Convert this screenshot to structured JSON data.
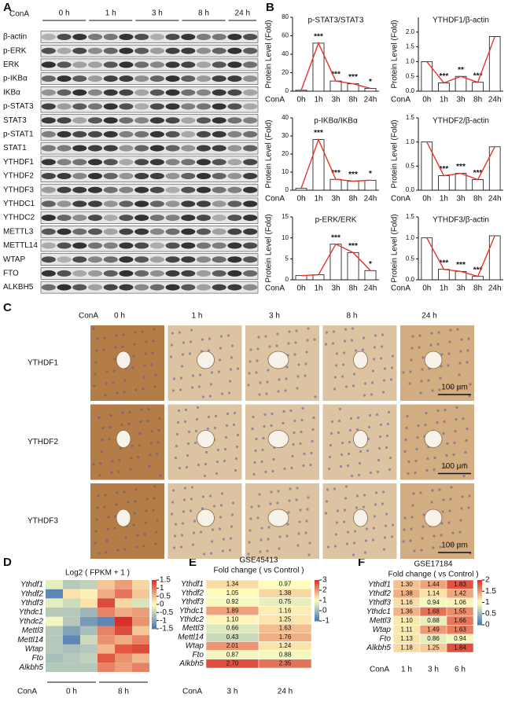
{
  "panel_labels": [
    "A",
    "B",
    "C",
    "D",
    "E",
    "F"
  ],
  "blot": {
    "treatment_label": "ConA",
    "timepoints": [
      "0 h",
      "1 h",
      "3 h",
      "8 h",
      "24 h"
    ],
    "proteins": [
      "β-actin",
      "p-ERK",
      "ERK",
      "p-IKBα",
      "IKBα",
      "p-STAT3",
      "STAT3",
      "p-STAT1",
      "STAT1",
      "YTHDF1",
      "YTHDF2",
      "YTHDF3",
      "YTHDC1",
      "YTHDC2",
      "METTL3",
      "METTL14",
      "WTAP",
      "FTO",
      "ALKBH5"
    ]
  },
  "chart_data": [
    {
      "type": "bar",
      "title": "p-STAT3/STAT3",
      "y_label": "Protein Level (Fold)",
      "x_label": "ConA",
      "categories": [
        "0h",
        "1h",
        "3h",
        "8h",
        "24h"
      ],
      "values": [
        1,
        52,
        11,
        8,
        3
      ],
      "annotations": [
        null,
        "***",
        "***",
        "***",
        "*"
      ],
      "ylim": [
        0,
        80
      ],
      "yticks": [
        0,
        20,
        40,
        60,
        80
      ],
      "color": "#ffffff",
      "line_color": "#e8342a"
    },
    {
      "type": "bar",
      "title": "YTHDF1/β-actin",
      "y_label": "Protein Level (Fold)",
      "x_label": "ConA",
      "categories": [
        "0h",
        "1h",
        "3h",
        "8h",
        "24h"
      ],
      "values": [
        1.0,
        0.28,
        0.5,
        0.3,
        1.85
      ],
      "annotations": [
        null,
        "***",
        "**",
        "***",
        null
      ],
      "ylim": [
        0,
        2.5
      ],
      "yticks": [
        {
          "value": 0,
          "label": "0.0"
        },
        0.5,
        {
          "value": 1,
          "label": "1.0"
        },
        1.5,
        {
          "value": 2,
          "label": "2.0"
        }
      ],
      "color": "#ffffff",
      "line_color": "#e8342a"
    },
    {
      "type": "bar",
      "title": "p-IKBα/IKBα",
      "y_label": "Protein Level (Fold)",
      "x_label": "ConA",
      "categories": [
        "0h",
        "1h",
        "3h",
        "8h",
        "24h"
      ],
      "values": [
        1,
        28,
        6,
        5,
        5.5
      ],
      "annotations": [
        null,
        "***",
        "***",
        "***",
        "*"
      ],
      "ylim": [
        0,
        40
      ],
      "yticks": [
        0,
        10,
        20,
        30,
        40
      ],
      "color": "#ffffff",
      "line_color": "#e8342a"
    },
    {
      "type": "bar",
      "title": "YTHDF2/β-actin",
      "y_label": "Protein Level (Fold)",
      "x_label": "ConA",
      "categories": [
        "0h",
        "1h",
        "3h",
        "8h",
        "24h"
      ],
      "values": [
        1.0,
        0.3,
        0.35,
        0.22,
        0.9
      ],
      "annotations": [
        null,
        "***",
        "***",
        "***",
        null
      ],
      "ylim": [
        0,
        1.5
      ],
      "yticks": [
        {
          "value": 0,
          "label": "0.0"
        },
        0.5,
        {
          "value": 1,
          "label": "1.0"
        },
        1.5
      ],
      "color": "#ffffff",
      "line_color": "#e8342a"
    },
    {
      "type": "bar",
      "title": "p-ERK/ERK",
      "y_label": "Protein Level (Fold)",
      "x_label": "ConA",
      "categories": [
        "0h",
        "1h",
        "3h",
        "8h",
        "24h"
      ],
      "values": [
        1,
        1.2,
        8.5,
        6.5,
        2.2
      ],
      "annotations": [
        null,
        null,
        "***",
        "***",
        "*"
      ],
      "ylim": [
        0,
        15
      ],
      "yticks": [
        0,
        5,
        10,
        15
      ],
      "color": "#ffffff",
      "line_color": "#e8342a"
    },
    {
      "type": "bar",
      "title": "YTHDF3/β-actin",
      "y_label": "Protein Level (Fold)",
      "x_label": "ConA",
      "categories": [
        "0h",
        "1h",
        "3h",
        "8h",
        "24h"
      ],
      "values": [
        1.0,
        0.25,
        0.2,
        0.08,
        1.05
      ],
      "annotations": [
        null,
        "***",
        "***",
        "***",
        null
      ],
      "ylim": [
        0,
        1.5
      ],
      "yticks": [
        {
          "value": 0,
          "label": "0.0"
        },
        0.5,
        {
          "value": 1,
          "label": "1.0"
        },
        1.5
      ],
      "color": "#ffffff",
      "line_color": "#e8342a"
    }
  ],
  "ihc": {
    "treatment_label": "ConA",
    "timepoints": [
      "0 h",
      "1 h",
      "3 h",
      "8 h",
      "24 h"
    ],
    "stains": [
      "YTHDF1",
      "YTHDF2",
      "YTHDF3"
    ],
    "scale_bar": "100 μm"
  },
  "heatmap": {
    "title": "Log2 ( FPKM + 1 )",
    "genes": [
      "Ythdf1",
      "Ythdf2",
      "Ythdf3",
      "Ythdc1",
      "Ythdc2",
      "Mettl3",
      "Mettl14",
      "Wtap",
      "Fto",
      "Alkbh5"
    ],
    "values": [
      [
        -0.2,
        -0.6,
        -0.5,
        0.4,
        0.7,
        0.3
      ],
      [
        -1.3,
        0.2,
        0.1,
        0.6,
        1.0,
        0.4
      ],
      [
        -0.2,
        -0.4,
        0.2,
        1.3,
        0.3,
        -0.3
      ],
      [
        -0.6,
        -0.6,
        -0.8,
        0.9,
        0.6,
        0.7
      ],
      [
        -0.1,
        -0.6,
        -1.1,
        -1.3,
        1.6,
        0.8
      ],
      [
        -0.6,
        -1.0,
        -0.7,
        0.9,
        1.3,
        0.4
      ],
      [
        -0.6,
        -1.3,
        -0.4,
        0.8,
        0.6,
        0.9
      ],
      [
        -0.6,
        -0.7,
        -0.6,
        0.5,
        1.2,
        1.3
      ],
      [
        -0.7,
        -0.6,
        -0.5,
        1.2,
        0.8,
        0.5
      ],
      [
        -0.6,
        -0.6,
        -0.6,
        0.9,
        0.7,
        0.9
      ]
    ],
    "colorbar_lim": [
      -1.5,
      1.5
    ],
    "colorbar_ticks": [
      1.5,
      1,
      0.5,
      0,
      -0.5,
      -1,
      -1.5
    ],
    "treatment_label": "ConA",
    "groups": [
      "0 h",
      "8 h"
    ]
  },
  "table_e": {
    "title": "GSE45413",
    "subtitle": "Fold change ( vs Control )",
    "genes": [
      "Ythdf1",
      "Ythdf2",
      "Ythdf3",
      "Ythdc1",
      "Ythdc2",
      "Mettl3",
      "Mettl14",
      "Wtap",
      "Fto",
      "Alkbh5"
    ],
    "columns": [
      "3 h",
      "24 h"
    ],
    "values": [
      [
        "1.34",
        "0.97"
      ],
      [
        "1.05",
        "1.38"
      ],
      [
        "0.92",
        "0.75"
      ],
      [
        "1.89",
        "1.16"
      ],
      [
        "1.10",
        "1.25"
      ],
      [
        "0.66",
        "1.63"
      ],
      [
        "0.43",
        "1.76"
      ],
      [
        "2.01",
        "1.24"
      ],
      [
        "0.87",
        "0.88"
      ],
      [
        "2.70",
        "2.35"
      ]
    ],
    "colorbar_lim": [
      -1,
      3
    ],
    "colorbar_ticks": [
      3,
      2,
      1,
      0,
      -1
    ],
    "treatment_label": "ConA"
  },
  "table_f": {
    "title": "GSE17184",
    "subtitle": "Fold change ( vs Control )",
    "genes": [
      "Ythdf1",
      "Ythdf2",
      "Ythdf3",
      "Ythdc1",
      "Mettl3",
      "Wtap",
      "Fto",
      "Alkbh5"
    ],
    "columns": [
      "1 h",
      "3 h",
      "6 h"
    ],
    "values": [
      [
        "1.30",
        "1.44",
        "1.83"
      ],
      [
        "1.38",
        "1.14",
        "1.42"
      ],
      [
        "1.16",
        "0.94",
        "1.06"
      ],
      [
        "1.36",
        "1.68",
        "1.55"
      ],
      [
        "1.10",
        "0.88",
        "1.66"
      ],
      [
        "1.11",
        "1.49",
        "1.63"
      ],
      [
        "1.13",
        "0.86",
        "0.94"
      ],
      [
        "1.18",
        "1.25",
        "1.84"
      ]
    ],
    "colorbar_lim": [
      0,
      2
    ],
    "colorbar_ticks": [
      2,
      1.5,
      1,
      0.5,
      0
    ],
    "treatment_label": "ConA"
  }
}
